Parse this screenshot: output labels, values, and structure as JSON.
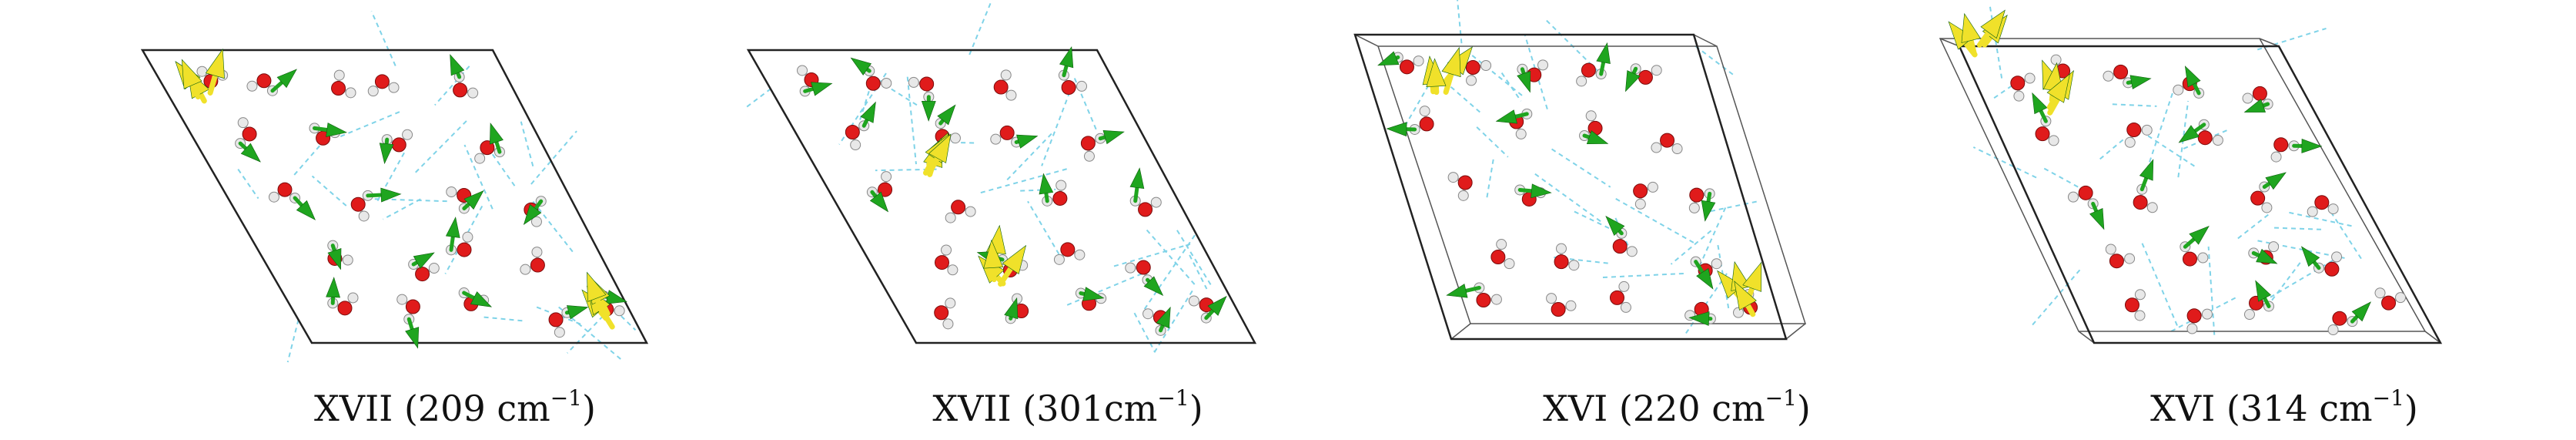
{
  "colors": {
    "frame": "#222222",
    "hbond": "#7fd3e8",
    "oxygen": "#e01b1b",
    "hydrogen": "#e8e8e8",
    "green_arrow": "#1fa51f",
    "yellow_arrow": "#f0e12a"
  },
  "panels": [
    {
      "label_main": "XVII (209 cm",
      "label_exp": "−1",
      "label_end": ")"
    },
    {
      "label_main": "XVII (301cm",
      "label_exp": "−1",
      "label_end": ")"
    },
    {
      "label_main": "XVI (220 cm",
      "label_exp": "−1",
      "label_end": ")"
    },
    {
      "label_main": "XVI (314 cm",
      "label_exp": "−1",
      "label_end": ")"
    }
  ]
}
